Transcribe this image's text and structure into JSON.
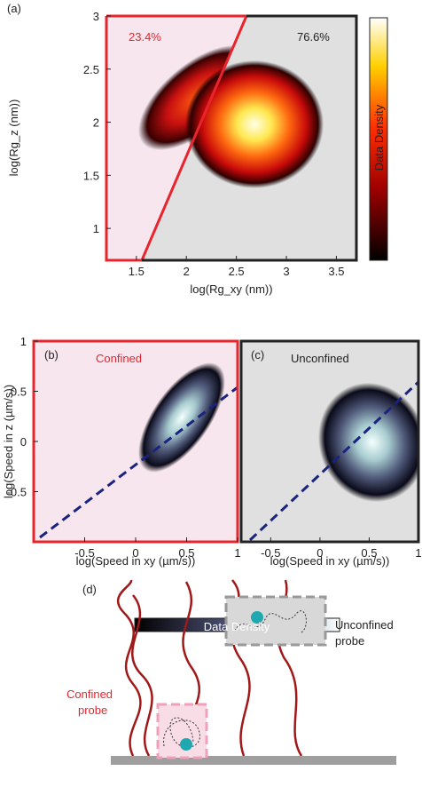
{
  "chart_data": [
    {
      "type": "density",
      "panel_label": "(a)",
      "x_label": "log(Rg_xy (nm))",
      "y_label": "log(Rg_z (nm))",
      "xlim": [
        1.2,
        3.7
      ],
      "ylim": [
        0.7,
        3
      ],
      "xticks": [
        1.5,
        2,
        2.5,
        3,
        3.5
      ],
      "yticks": [
        1,
        1.5,
        2,
        2.5,
        3
      ],
      "annotations": [
        "23.4%",
        "76.6%"
      ],
      "colorbar_label": "Data Density"
    },
    {
      "type": "density",
      "panel_label": "(b)",
      "x_label": "log(Speed in xy (µm/s))",
      "y_label": "log(Speed in z (µm/s))",
      "xlim": [
        -1,
        1
      ],
      "ylim": [
        -1,
        1
      ],
      "xticks": [
        -0.5,
        0,
        0.5,
        1
      ],
      "yticks": [
        -0.5,
        0,
        0.5,
        1
      ],
      "annotations": [
        "Confined"
      ],
      "colorbar_label": "Data Density"
    },
    {
      "type": "density",
      "panel_label": "(c)",
      "x_label": "log(Speed in xy (µm/s))",
      "xlim": [
        -0.8,
        1
      ],
      "ylim": [
        -1,
        1
      ],
      "xticks": [
        -0.5,
        0,
        0.5,
        1
      ],
      "annotations": [
        "Unconfined"
      ]
    }
  ],
  "diagram": {
    "panel_label": "(d)",
    "unconfined_label": [
      "Unconfined",
      "probe"
    ],
    "confined_label": [
      "Confined",
      "probe"
    ]
  }
}
